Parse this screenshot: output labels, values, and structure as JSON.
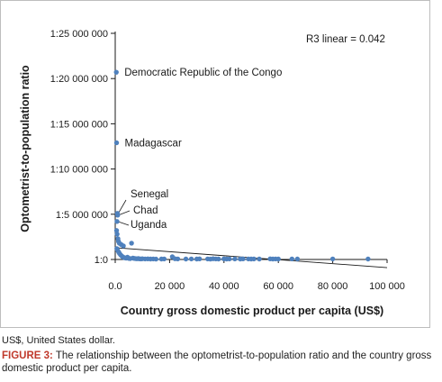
{
  "chart_data": {
    "type": "scatter",
    "xlabel": "Country gross domestic product per capita (US$)",
    "ylabel": "Optometrist-to-population ratio",
    "xlim": [
      0,
      100000
    ],
    "ylim": [
      0,
      25000000
    ],
    "x_ticks": [
      0,
      20000,
      40000,
      60000,
      80000,
      100000
    ],
    "x_tick_labels": [
      "0.0",
      "20 000",
      "40 000",
      "60 000",
      "80 000",
      "100 000"
    ],
    "y_ticks": [
      0,
      5000000,
      10000000,
      15000000,
      20000000,
      25000000
    ],
    "y_tick_labels": [
      "1:0",
      "1:5 000 000",
      "1:10 000 000",
      "1:15 000 000",
      "1:20 000 000",
      "1:25 000 000"
    ],
    "grid": false,
    "marker_color": "#4f81bd",
    "trendline": {
      "x": [
        0,
        100000
      ],
      "y": [
        1300000,
        -900000
      ],
      "color": "#1a1a1a"
    },
    "r2_label": "R3 linear = 0.042",
    "points": [
      {
        "x": 400,
        "y": 20700000,
        "label": "Democratic Republic of the Congo"
      },
      {
        "x": 500,
        "y": 12900000,
        "label": "Madagascar"
      },
      {
        "x": 800,
        "y": 5100000,
        "label": "Senegal"
      },
      {
        "x": 900,
        "y": 4900000,
        "label": "Chad"
      },
      {
        "x": 650,
        "y": 4200000,
        "label": "Uganda"
      },
      {
        "x": 500,
        "y": 3200000
      },
      {
        "x": 700,
        "y": 2800000
      },
      {
        "x": 1000,
        "y": 2300000
      },
      {
        "x": 1200,
        "y": 2000000
      },
      {
        "x": 1500,
        "y": 1800000
      },
      {
        "x": 2200,
        "y": 1650000
      },
      {
        "x": 3000,
        "y": 1500000
      },
      {
        "x": 6000,
        "y": 1800000
      },
      {
        "x": 600,
        "y": 1200000
      },
      {
        "x": 900,
        "y": 1000000
      },
      {
        "x": 1300,
        "y": 800000
      },
      {
        "x": 1600,
        "y": 650000
      },
      {
        "x": 2000,
        "y": 500000
      },
      {
        "x": 2500,
        "y": 350000
      },
      {
        "x": 3000,
        "y": 250000
      },
      {
        "x": 3500,
        "y": 180000
      },
      {
        "x": 4000,
        "y": 150000
      },
      {
        "x": 4500,
        "y": 250000
      },
      {
        "x": 5000,
        "y": 120000
      },
      {
        "x": 5500,
        "y": 100000
      },
      {
        "x": 6500,
        "y": 150000
      },
      {
        "x": 7000,
        "y": 120000
      },
      {
        "x": 7500,
        "y": 90000
      },
      {
        "x": 8000,
        "y": 80000
      },
      {
        "x": 8500,
        "y": 100000
      },
      {
        "x": 9000,
        "y": 70000
      },
      {
        "x": 9500,
        "y": 60000
      },
      {
        "x": 10000,
        "y": 80000
      },
      {
        "x": 11000,
        "y": 60000
      },
      {
        "x": 12000,
        "y": 70000
      },
      {
        "x": 13000,
        "y": 50000
      },
      {
        "x": 14000,
        "y": 60000
      },
      {
        "x": 15000,
        "y": 40000
      },
      {
        "x": 17000,
        "y": 50000
      },
      {
        "x": 18000,
        "y": 60000
      },
      {
        "x": 21000,
        "y": 300000
      },
      {
        "x": 22000,
        "y": 80000
      },
      {
        "x": 23000,
        "y": 60000
      },
      {
        "x": 26000,
        "y": 50000
      },
      {
        "x": 28000,
        "y": 60000
      },
      {
        "x": 30000,
        "y": 50000
      },
      {
        "x": 31000,
        "y": 70000
      },
      {
        "x": 34000,
        "y": 60000
      },
      {
        "x": 35000,
        "y": 40000
      },
      {
        "x": 36000,
        "y": 80000
      },
      {
        "x": 37000,
        "y": 60000
      },
      {
        "x": 38000,
        "y": 50000
      },
      {
        "x": 40000,
        "y": 70000
      },
      {
        "x": 41000,
        "y": 50000
      },
      {
        "x": 42000,
        "y": 60000
      },
      {
        "x": 44000,
        "y": 60000
      },
      {
        "x": 46000,
        "y": 50000
      },
      {
        "x": 47000,
        "y": 70000
      },
      {
        "x": 49000,
        "y": 60000
      },
      {
        "x": 50000,
        "y": 50000
      },
      {
        "x": 51000,
        "y": 60000
      },
      {
        "x": 53000,
        "y": 50000
      },
      {
        "x": 57000,
        "y": 70000
      },
      {
        "x": 58000,
        "y": 50000
      },
      {
        "x": 59000,
        "y": 60000
      },
      {
        "x": 60000,
        "y": 50000
      },
      {
        "x": 65000,
        "y": 60000
      },
      {
        "x": 67000,
        "y": 50000
      },
      {
        "x": 80000,
        "y": 60000
      },
      {
        "x": 93000,
        "y": 50000
      }
    ]
  },
  "note": "US$, United States dollar.",
  "caption": {
    "label": "FIGURE 3:",
    "text": " The relationship between the optometrist-to-population ratio and the country gross domestic product per capita."
  }
}
